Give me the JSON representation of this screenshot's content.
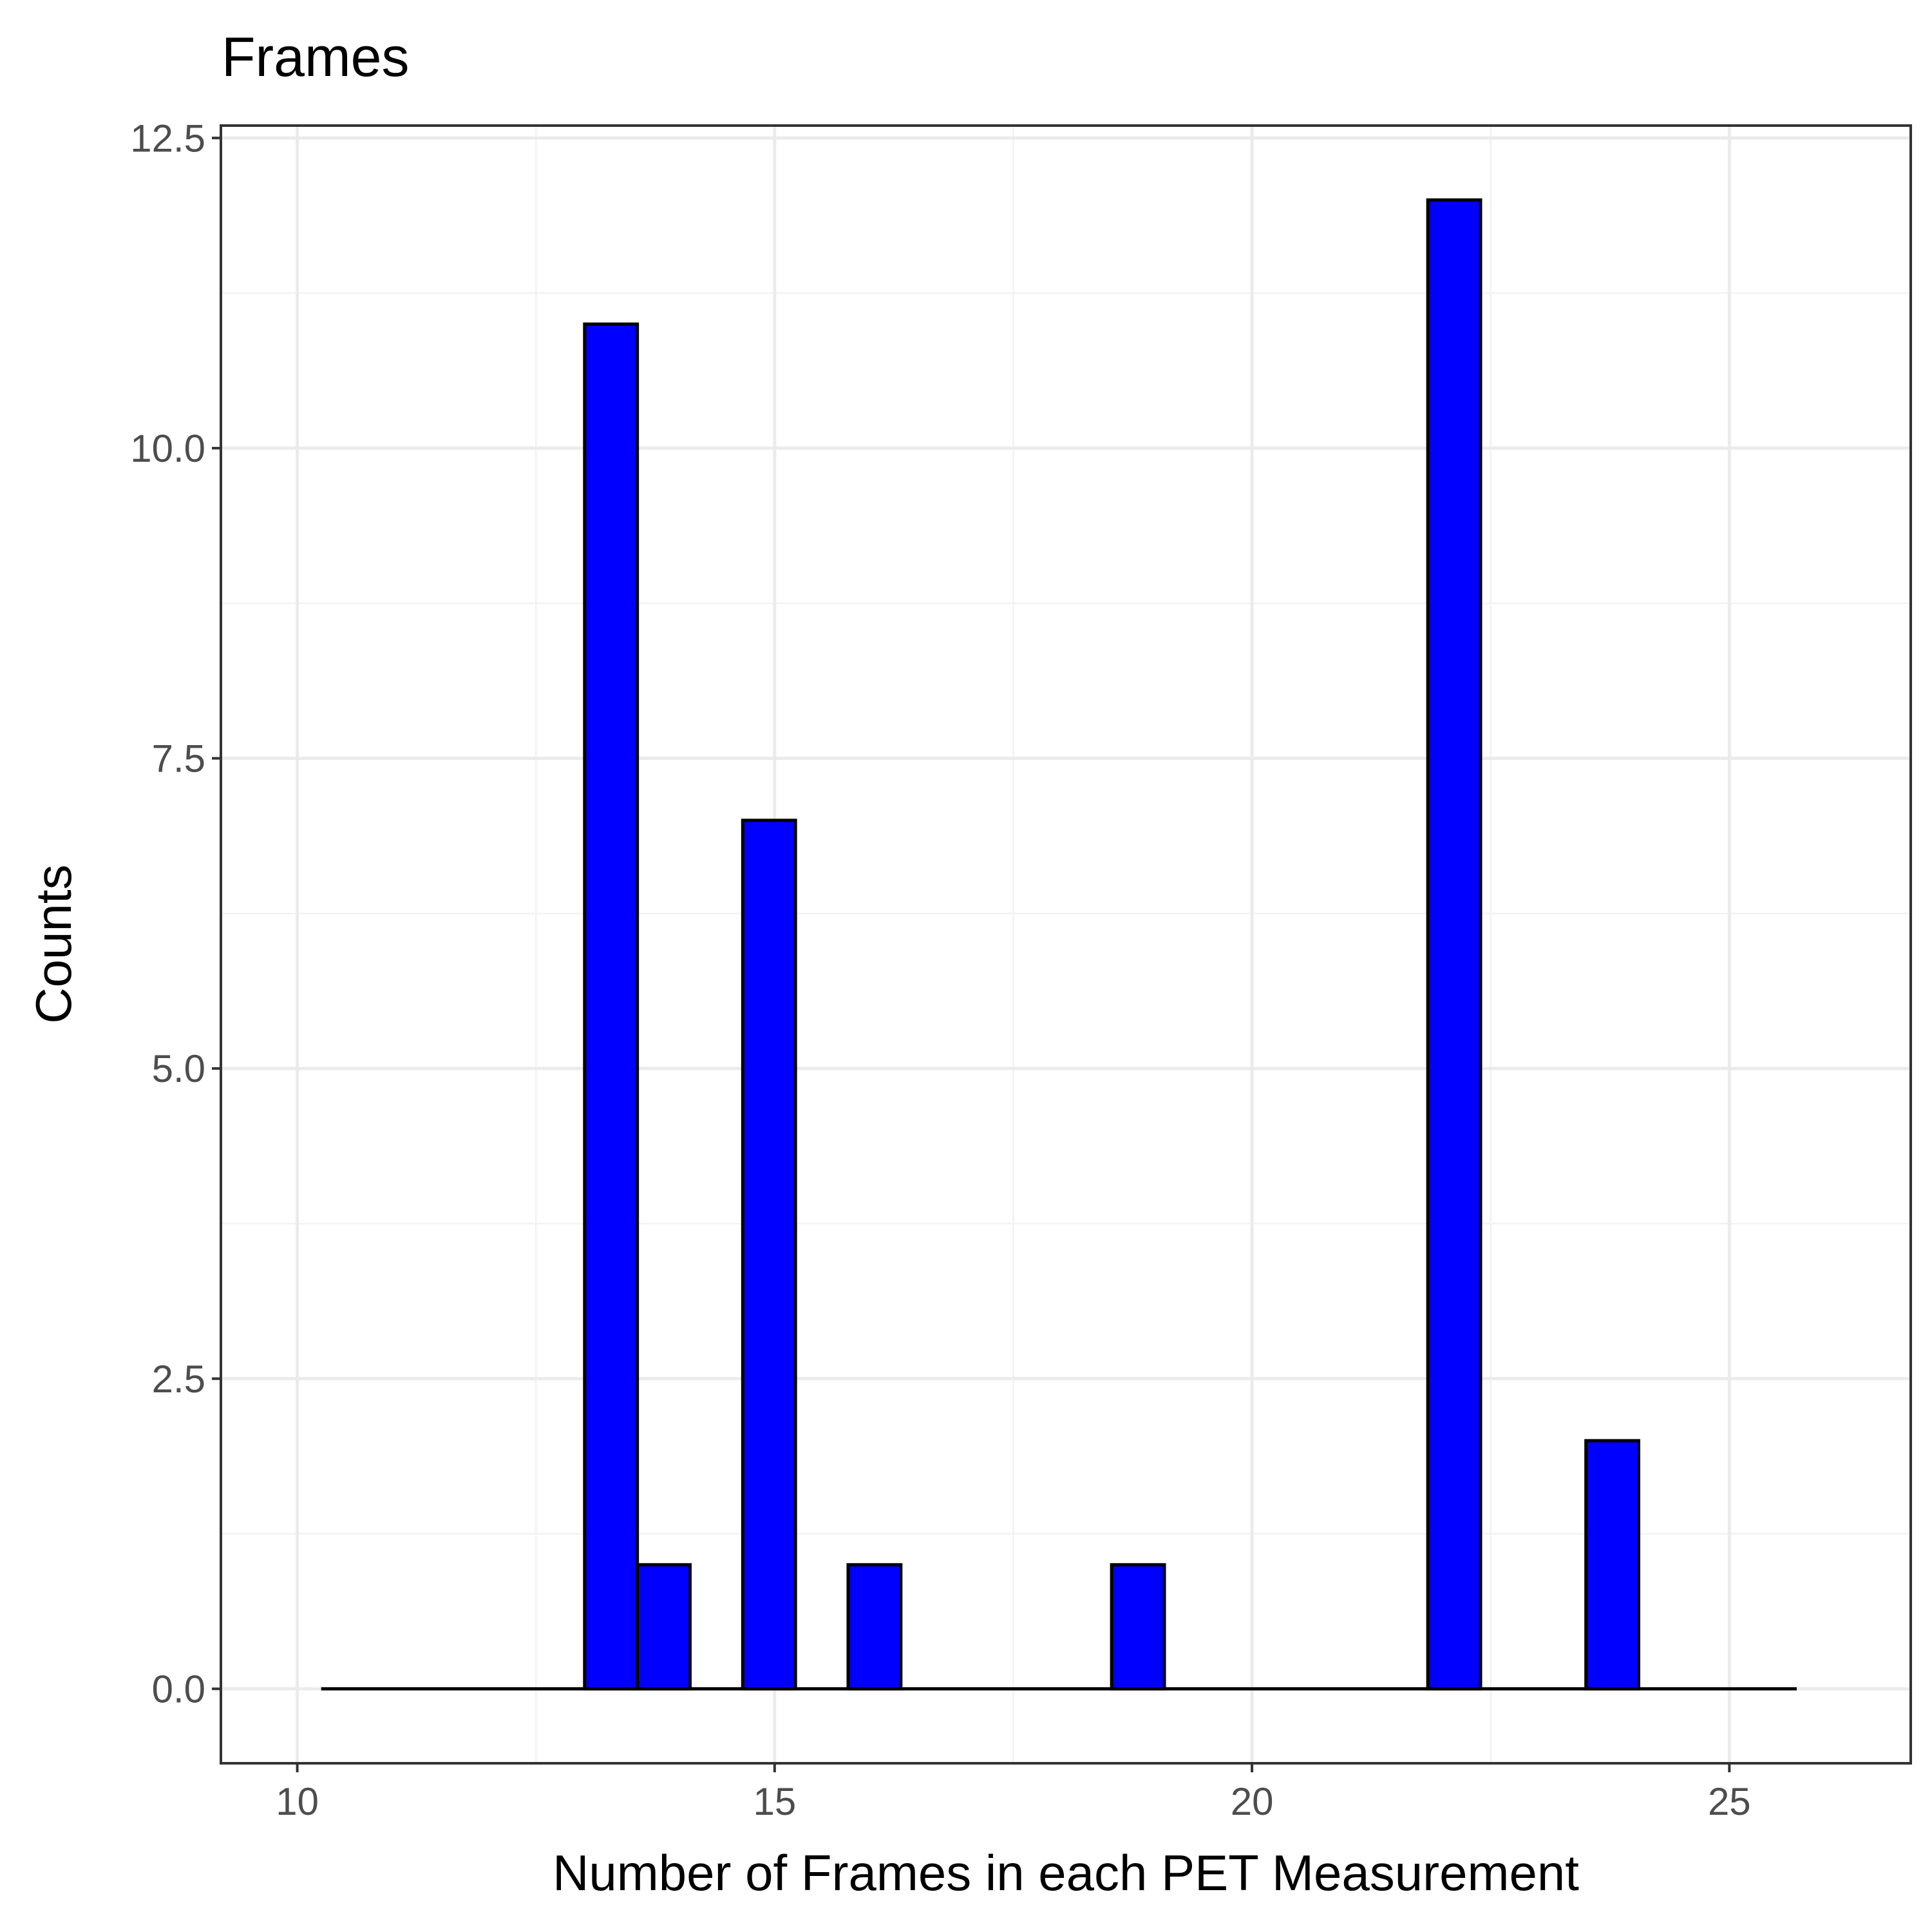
{
  "chart_data": {
    "type": "bar",
    "title": "Frames",
    "xlabel": "Number of Frames in each PET Measurement",
    "ylabel": "Counts",
    "xlim": [
      9.2,
      26.9
    ],
    "ylim": [
      -0.6,
      12.6
    ],
    "x_ticks": [
      10,
      15,
      20,
      25
    ],
    "x_tick_labels": [
      "10",
      "15",
      "20",
      "25"
    ],
    "y_ticks": [
      0,
      2.5,
      5,
      7.5,
      10,
      12.5
    ],
    "y_tick_labels": [
      "0.0",
      "2.5",
      "5.0",
      "7.5",
      "10.0",
      "12.5"
    ],
    "grid": true,
    "bin_width": 0.552,
    "bin_start": 10.25,
    "bins": [
      {
        "x": 10.526,
        "count": 0
      },
      {
        "x": 11.078,
        "count": 0
      },
      {
        "x": 11.63,
        "count": 0
      },
      {
        "x": 12.182,
        "count": 0
      },
      {
        "x": 12.734,
        "count": 0
      },
      {
        "x": 13.286,
        "count": 11
      },
      {
        "x": 13.838,
        "count": 1
      },
      {
        "x": 14.39,
        "count": 0
      },
      {
        "x": 14.942,
        "count": 7
      },
      {
        "x": 15.494,
        "count": 0
      },
      {
        "x": 16.046,
        "count": 1
      },
      {
        "x": 16.598,
        "count": 0
      },
      {
        "x": 17.15,
        "count": 0
      },
      {
        "x": 17.702,
        "count": 0
      },
      {
        "x": 18.254,
        "count": 0
      },
      {
        "x": 18.806,
        "count": 1
      },
      {
        "x": 19.358,
        "count": 0
      },
      {
        "x": 19.91,
        "count": 0
      },
      {
        "x": 20.462,
        "count": 0
      },
      {
        "x": 21.014,
        "count": 0
      },
      {
        "x": 21.566,
        "count": 0
      },
      {
        "x": 22.118,
        "count": 12
      },
      {
        "x": 22.67,
        "count": 0
      },
      {
        "x": 23.222,
        "count": 0
      },
      {
        "x": 23.774,
        "count": 2
      },
      {
        "x": 24.326,
        "count": 0
      },
      {
        "x": 24.878,
        "count": 0
      },
      {
        "x": 25.43,
        "count": 0
      }
    ],
    "fill_color": "#0000ff",
    "outline_color": "#000000"
  }
}
